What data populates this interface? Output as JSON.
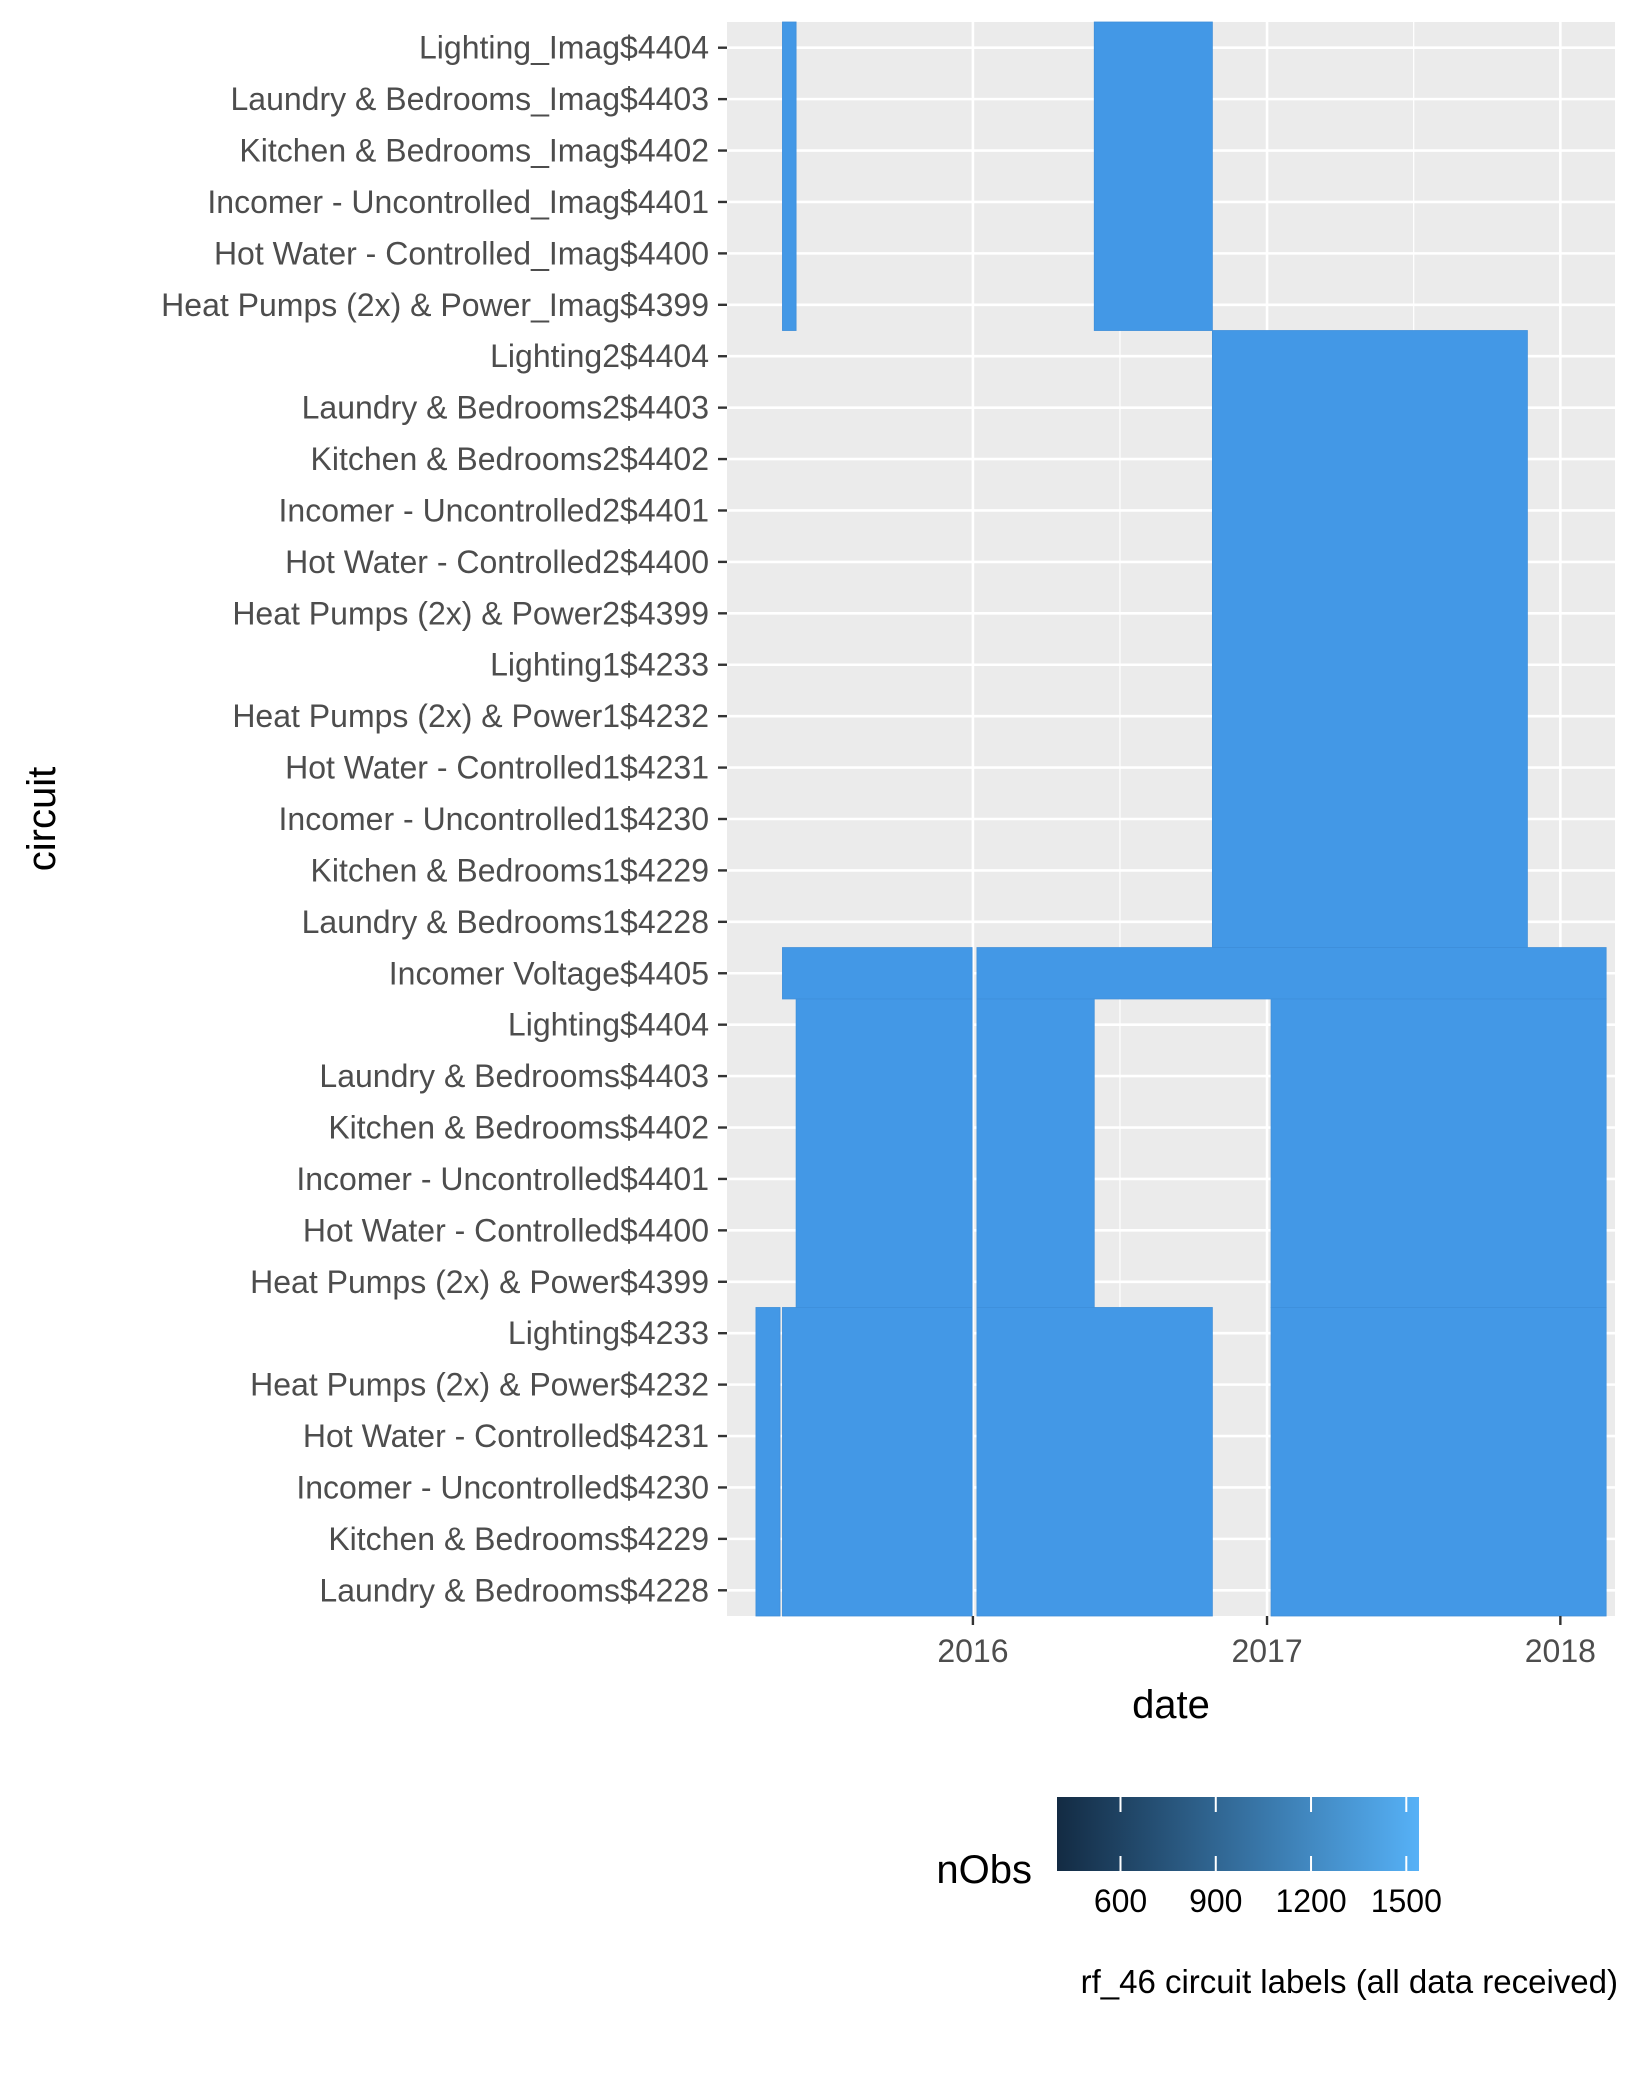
{
  "chart_data": {
    "type": "heatmap",
    "xlabel": "date",
    "ylabel": "circuit",
    "caption": "rf_46 circuit labels (all data received)",
    "x_ticks": [
      "2016",
      "2017",
      "2018"
    ],
    "x_tick_dates": [
      "2016-01-01",
      "2017-01-01",
      "2018-01-01"
    ],
    "xlim": [
      "2015-03-01",
      "2018-03-10"
    ],
    "grid": true,
    "circuits": [
      "Lighting_Imag$4404",
      "Laundry & Bedrooms_Imag$4403",
      "Kitchen & Bedrooms_Imag$4402",
      "Incomer - Uncontrolled_Imag$4401",
      "Hot Water - Controlled_Imag$4400",
      "Heat Pumps (2x) & Power_Imag$4399",
      "Lighting2$4404",
      "Laundry & Bedrooms2$4403",
      "Kitchen & Bedrooms2$4402",
      "Incomer - Uncontrolled2$4401",
      "Hot Water - Controlled2$4400",
      "Heat Pumps (2x) & Power2$4399",
      "Lighting1$4233",
      "Heat Pumps (2x) & Power1$4232",
      "Hot Water - Controlled1$4231",
      "Incomer - Uncontrolled1$4230",
      "Kitchen & Bedrooms1$4229",
      "Laundry & Bedrooms1$4228",
      "Incomer Voltage$4405",
      "Lighting$4404",
      "Laundry & Bedrooms$4403",
      "Kitchen & Bedrooms$4402",
      "Incomer - Uncontrolled$4401",
      "Hot Water - Controlled$4400",
      "Heat Pumps (2x) & Power$4399",
      "Lighting$4233",
      "Heat Pumps (2x) & Power$4232",
      "Hot Water - Controlled$4231",
      "Incomer - Uncontrolled$4230",
      "Kitchen & Bedrooms$4229",
      "Laundry & Bedrooms$4228"
    ],
    "coverage": [
      {
        "rows": [
          0,
          5
        ],
        "start": "2015-05-09",
        "end": "2015-05-26",
        "nObs": 1440
      },
      {
        "rows": [
          0,
          5
        ],
        "start": "2016-05-31",
        "end": "2016-10-25",
        "nObs": 1440
      },
      {
        "rows": [
          6,
          17
        ],
        "start": "2016-10-25",
        "end": "2017-11-21",
        "nObs": 1440
      },
      {
        "rows": [
          18,
          18
        ],
        "start": "2015-05-09",
        "end": "2015-12-31",
        "nObs": 1440
      },
      {
        "rows": [
          18,
          18
        ],
        "start": "2016-01-06",
        "end": "2018-02-27",
        "nObs": 1440
      },
      {
        "rows": [
          19,
          24
        ],
        "start": "2015-05-26",
        "end": "2015-12-31",
        "nObs": 1440
      },
      {
        "rows": [
          19,
          24
        ],
        "start": "2016-01-06",
        "end": "2016-05-31",
        "nObs": 1440
      },
      {
        "rows": [
          19,
          24
        ],
        "start": "2017-01-06",
        "end": "2018-02-27",
        "nObs": 1440
      },
      {
        "rows": [
          25,
          30
        ],
        "start": "2015-04-06",
        "end": "2015-05-06",
        "nObs": 1440
      },
      {
        "rows": [
          25,
          30
        ],
        "start": "2015-05-09",
        "end": "2015-12-31",
        "nObs": 1440
      },
      {
        "rows": [
          25,
          30
        ],
        "start": "2016-01-06",
        "end": "2016-10-25",
        "nObs": 1440
      },
      {
        "rows": [
          25,
          30
        ],
        "start": "2017-01-06",
        "end": "2018-02-27",
        "nObs": 1440
      }
    ],
    "legend": {
      "title": "nObs",
      "position": "bottom",
      "ticks": [
        600,
        900,
        1200,
        1500
      ],
      "range": [
        400,
        1540
      ],
      "color_low": "#132B43",
      "color_high": "#56B1F7"
    },
    "fill_color": "#4398E6"
  }
}
